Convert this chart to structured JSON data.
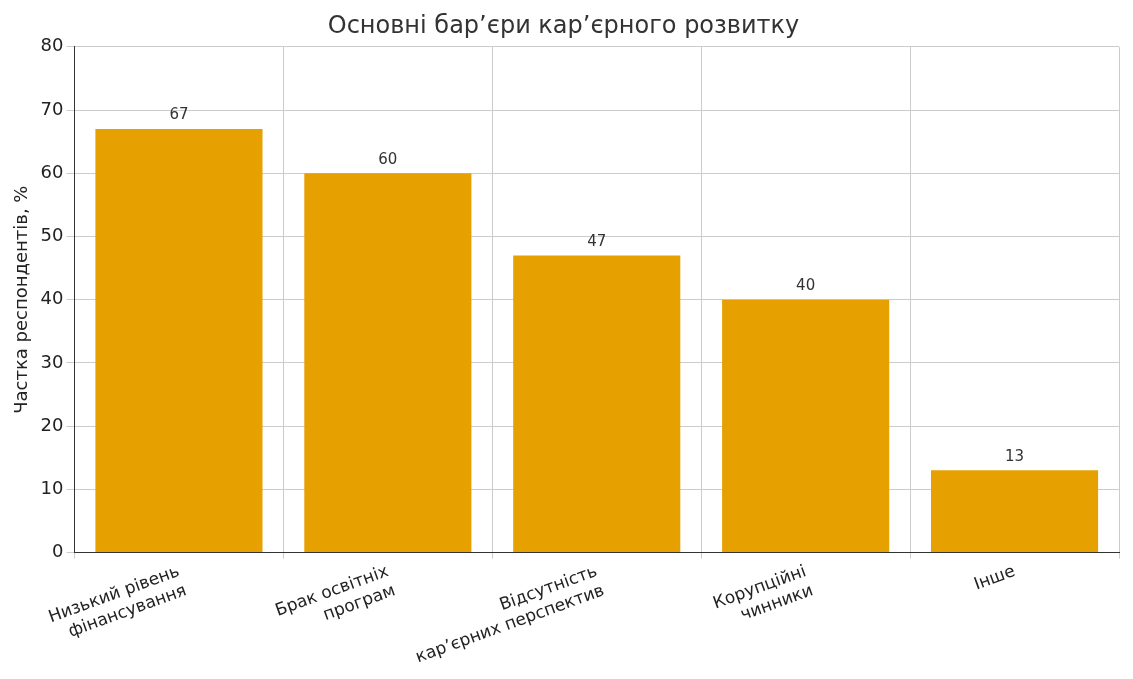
{
  "chart_data": {
    "type": "bar",
    "title": "Основні бар’єри кар’єрного розвитку",
    "ylabel": "Частка респондентів, %",
    "categories": [
      "Низький рівень\nфінансування",
      "Брак освітніх\nпрограм",
      "Відсутність\nкар’єрних перспектив",
      "Корупційні\nчинники",
      "Інше"
    ],
    "values": [
      67,
      60,
      47,
      40,
      13
    ],
    "color": "#e6a000",
    "ylim": [
      0,
      80
    ],
    "yticks": [
      0,
      10,
      20,
      30,
      40,
      50,
      60,
      70,
      80
    ],
    "grid": true,
    "data_labels": true
  }
}
